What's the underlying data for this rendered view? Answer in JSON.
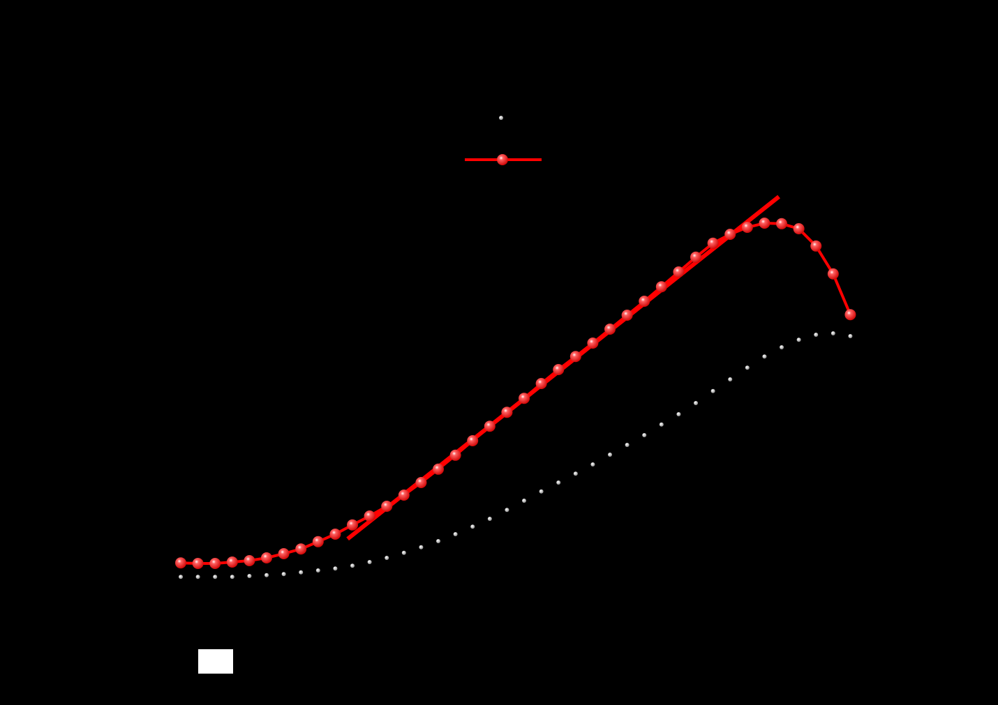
{
  "chart_data": {
    "type": "line",
    "x": [
      0,
      1,
      2,
      3,
      4,
      5,
      6,
      7,
      8,
      9,
      10,
      11,
      12,
      13,
      14,
      15,
      16,
      17,
      18,
      19,
      20,
      21,
      22,
      23,
      24,
      25,
      26,
      27,
      28,
      29,
      30,
      31,
      32,
      33,
      34,
      35,
      36,
      37,
      38,
      39
    ],
    "series": [
      {
        "color": "#b0b0b0",
        "line_color": "#000000",
        "marker": "small",
        "values": [
          9.1,
          9.1,
          9.1,
          9.1,
          9.25,
          9.4,
          9.6,
          9.9,
          10.25,
          10.6,
          11.1,
          11.75,
          12.5,
          13.4,
          14.4,
          15.5,
          16.75,
          18.1,
          19.5,
          21.1,
          22.75,
          24.4,
          26,
          27.6,
          29.25,
          31,
          32.75,
          34.5,
          36.4,
          38.25,
          40.25,
          42.4,
          44.5,
          46.6,
          48.6,
          50.25,
          51.6,
          52.5,
          52.75,
          52.25
        ]
      },
      {
        "color": "#ff0000",
        "line_color": "#ff0000",
        "marker": "large",
        "values": [
          11.6,
          11.5,
          11.5,
          11.75,
          12,
          12.5,
          13.25,
          14.1,
          15.4,
          16.75,
          18.4,
          20,
          21.75,
          23.75,
          26,
          28.4,
          30.9,
          33.5,
          36.1,
          38.6,
          41.1,
          43.75,
          46.25,
          48.6,
          51,
          53.5,
          56,
          58.5,
          61.1,
          63.75,
          66.4,
          68.9,
          70.5,
          71.75,
          72.5,
          72.4,
          71.5,
          68.4,
          63.4,
          56.1
        ]
      }
    ],
    "fit": {
      "color": "#ff0000",
      "x": [
        9.72,
        34.84
      ],
      "values": [
        15.9,
        77.25
      ]
    },
    "xlim": [
      -1,
      39.45
    ],
    "ylim": [
      0,
      100
    ]
  }
}
